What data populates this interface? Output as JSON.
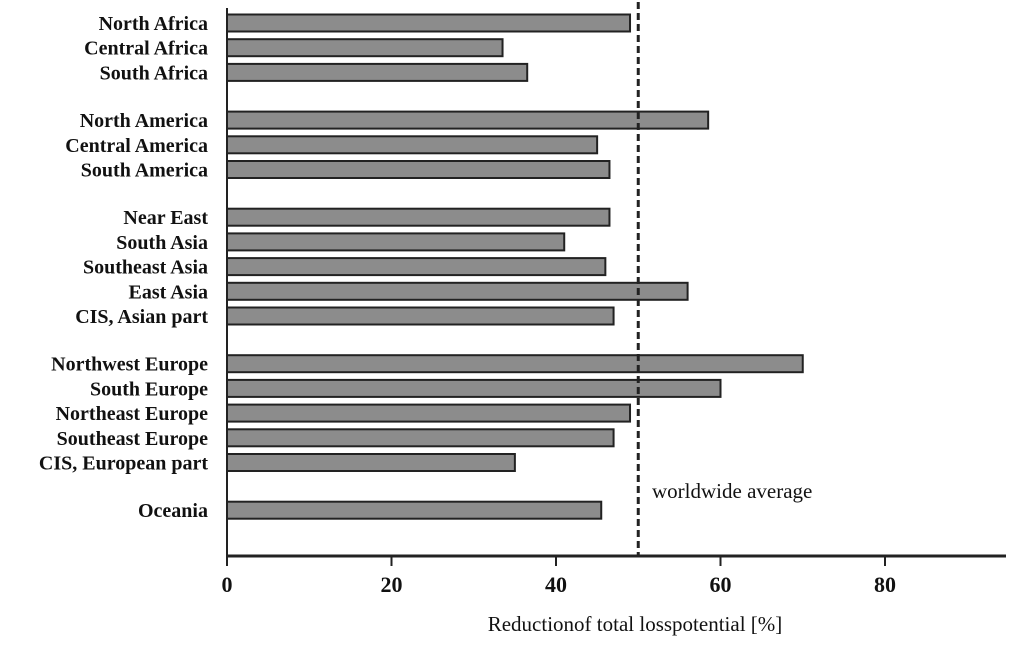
{
  "chart_data": {
    "type": "bar",
    "orientation": "horizontal",
    "categories": [
      "North Africa",
      "Central Africa",
      "South Africa",
      "North America",
      "Central America",
      "South America",
      "Near East",
      "South Asia",
      "Southeast Asia",
      "East Asia",
      "CIS, Asian part",
      "Northwest Europe",
      "South Europe",
      "Northeast Europe",
      "Southeast Europe",
      "CIS, European part",
      "Oceania"
    ],
    "groups": [
      3,
      3,
      5,
      5,
      1
    ],
    "values": [
      49,
      33.5,
      36.5,
      58.5,
      45,
      46.5,
      46.5,
      41,
      46,
      56,
      47,
      70,
      60,
      49,
      47,
      35,
      45.5
    ],
    "xlabel": "Reductionof total losspotential [%]",
    "ylabel": "",
    "title": "",
    "xlim": [
      0,
      94
    ],
    "xticks": [
      0,
      20,
      40,
      60,
      80
    ],
    "grid": false,
    "bar_color": "#8c8c8c",
    "reference_line": {
      "value": 50,
      "label": "worldwide average",
      "style": "dashed"
    }
  }
}
